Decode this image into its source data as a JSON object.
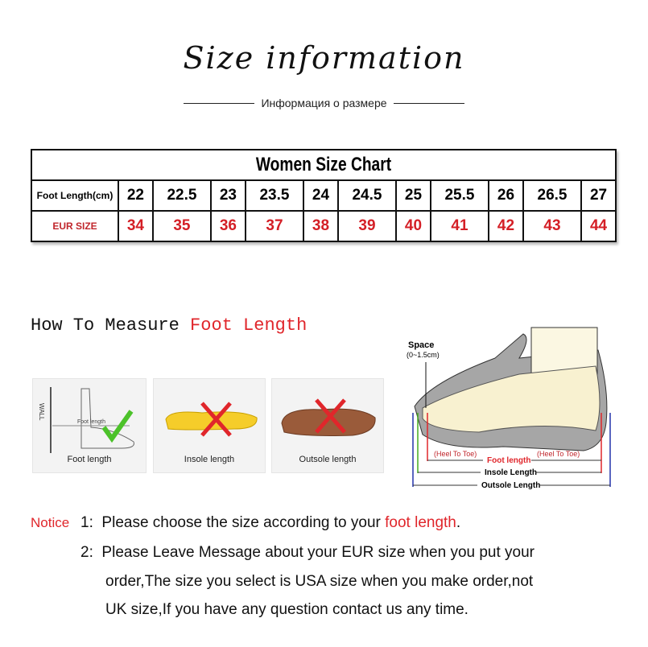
{
  "title": "Size information",
  "subtitle": "Информация о размере",
  "chart": {
    "title": "Women Size Chart",
    "row_labels": [
      "Foot Length(cm)",
      "EUR SIZE"
    ],
    "foot_length": [
      "22",
      "22.5",
      "23",
      "23.5",
      "24",
      "24.5",
      "25",
      "25.5",
      "26",
      "26.5",
      "27"
    ],
    "eur_size": [
      "34",
      "35",
      "36",
      "37",
      "38",
      "39",
      "40",
      "41",
      "42",
      "43",
      "44"
    ]
  },
  "measure": {
    "heading": "How To Measure ",
    "heading_red": "Foot Length",
    "panels": [
      "Foot length",
      "Insole length",
      "Outsole length"
    ],
    "wall": "WALL",
    "foot_len_small": "Foot length"
  },
  "diagram": {
    "space": "Space",
    "space_range": "(0~1.5cm)",
    "heel_to_toe": "(Heel To Toe)",
    "foot_length": "Foot length",
    "insole": "Insole Length",
    "outsole": "Outsole Length"
  },
  "notice": {
    "label": "Notice",
    "n1": "1:",
    "l1a": "Please choose the size according to your ",
    "l1b": "foot length",
    "l1c": ".",
    "n2": "2:",
    "l2": "Please Leave Message about your EUR size when you put your",
    "l3": "order,The size you select is USA size when you make order,not",
    "l4": "UK size,If you have any question  contact us any time."
  },
  "colors": {
    "accent": "#e0262b",
    "eur": "#d41f26"
  }
}
